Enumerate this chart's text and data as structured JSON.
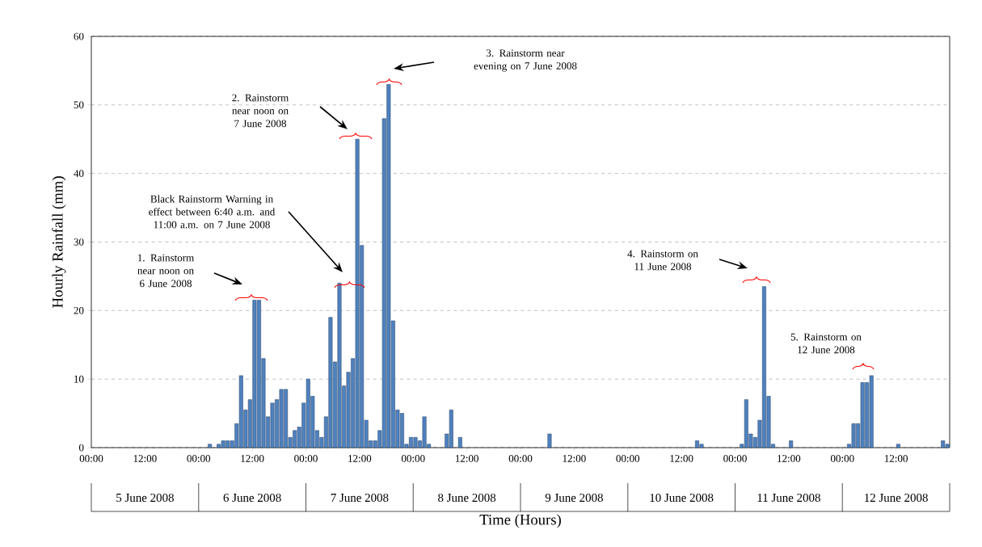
{
  "chart_data": {
    "type": "bar",
    "xlabel": "Time (Hours)",
    "ylabel": "Hourly Rainfall (mm)",
    "color": "#4f81bd",
    "grid": "y",
    "x": [
      "2008-06-06T02:00",
      "2008-06-06T04:00",
      "2008-06-06T05:00",
      "2008-06-06T06:00",
      "2008-06-06T07:00",
      "2008-06-06T08:00",
      "2008-06-06T09:00",
      "2008-06-06T10:00",
      "2008-06-06T11:00",
      "2008-06-06T12:00",
      "2008-06-06T13:00",
      "2008-06-06T14:00",
      "2008-06-06T15:00",
      "2008-06-06T16:00",
      "2008-06-06T17:00",
      "2008-06-06T18:00",
      "2008-06-06T19:00",
      "2008-06-06T20:00",
      "2008-06-06T21:00",
      "2008-06-06T22:00",
      "2008-06-06T23:00",
      "2008-06-07T00:00",
      "2008-06-07T01:00",
      "2008-06-07T02:00",
      "2008-06-07T03:00",
      "2008-06-07T04:00",
      "2008-06-07T05:00",
      "2008-06-07T06:00",
      "2008-06-07T07:00",
      "2008-06-07T08:00",
      "2008-06-07T09:00",
      "2008-06-07T10:00",
      "2008-06-07T11:00",
      "2008-06-07T12:00",
      "2008-06-07T13:00",
      "2008-06-07T14:00",
      "2008-06-07T15:00",
      "2008-06-07T16:00",
      "2008-06-07T17:00",
      "2008-06-07T18:00",
      "2008-06-07T19:00",
      "2008-06-07T20:00",
      "2008-06-07T21:00",
      "2008-06-07T22:00",
      "2008-06-07T23:00",
      "2008-06-08T00:00",
      "2008-06-08T01:00",
      "2008-06-08T02:00",
      "2008-06-08T03:00",
      "2008-06-08T07:00",
      "2008-06-08T08:00",
      "2008-06-08T10:00",
      "2008-06-09T06:00",
      "2008-06-10T15:00",
      "2008-06-10T16:00",
      "2008-06-11T01:00",
      "2008-06-11T02:00",
      "2008-06-11T03:00",
      "2008-06-11T04:00",
      "2008-06-11T05:00",
      "2008-06-11T06:00",
      "2008-06-11T07:00",
      "2008-06-11T08:00",
      "2008-06-11T12:00",
      "2008-06-12T01:00",
      "2008-06-12T02:00",
      "2008-06-12T03:00",
      "2008-06-12T04:00",
      "2008-06-12T05:00",
      "2008-06-12T06:00",
      "2008-06-12T12:00",
      "2008-06-12T22:00",
      "2008-06-12T23:00"
    ],
    "values": [
      0.5,
      0.5,
      1,
      1,
      1,
      3.5,
      10.5,
      5.5,
      7,
      21.5,
      21.5,
      13,
      4.5,
      6.5,
      7,
      8.5,
      8.5,
      1.5,
      2.5,
      3,
      6.5,
      10,
      7.5,
      2.5,
      1.5,
      4.5,
      19,
      12.5,
      24,
      9,
      11,
      13,
      45,
      29.5,
      4,
      1,
      1,
      2.5,
      48,
      53,
      18.5,
      5.5,
      5,
      0.5,
      1.5,
      1.5,
      1,
      4.5,
      0.5,
      2,
      5.5,
      1.5,
      2,
      1,
      0.5,
      0.5,
      7,
      2,
      1.5,
      4,
      23.5,
      7.5,
      0.5,
      1,
      0.5,
      3.5,
      3.5,
      9.5,
      9.5,
      10.5,
      0.5,
      1,
      0.5
    ],
    "xlim": [
      "2008-06-05T00:00",
      "2008-06-13T00:00"
    ],
    "ylim": [
      0,
      60
    ],
    "yticks": [
      0,
      10,
      20,
      30,
      40,
      50,
      60
    ],
    "xticks": [
      {
        "value": "2008-06-05T00:00",
        "label": "00:00"
      },
      {
        "value": "2008-06-05T12:00",
        "label": "12:00"
      },
      {
        "value": "2008-06-06T00:00",
        "label": "00:00"
      },
      {
        "value": "2008-06-06T12:00",
        "label": "12:00"
      },
      {
        "value": "2008-06-07T00:00",
        "label": "00:00"
      },
      {
        "value": "2008-06-07T12:00",
        "label": "12:00"
      },
      {
        "value": "2008-06-08T00:00",
        "label": "00:00"
      },
      {
        "value": "2008-06-08T12:00",
        "label": "12:00"
      },
      {
        "value": "2008-06-09T00:00",
        "label": "00:00"
      },
      {
        "value": "2008-06-09T12:00",
        "label": "12:00"
      },
      {
        "value": "2008-06-10T00:00",
        "label": "00:00"
      },
      {
        "value": "2008-06-10T12:00",
        "label": "12:00"
      },
      {
        "value": "2008-06-11T00:00",
        "label": "00:00"
      },
      {
        "value": "2008-06-11T12:00",
        "label": "12:00"
      },
      {
        "value": "2008-06-12T00:00",
        "label": "00:00"
      },
      {
        "value": "2008-06-12T12:00",
        "label": "12:00"
      }
    ],
    "annotations": [
      "1. Rainstorm near noon on 6 June 2008",
      "Black Rainstorm Warning in effect between 6:40 a.m. and 11:00 a.m. on 7 June 2008",
      "2. Rainstorm near noon on 7 June 2008",
      "3. Rainstorm near evening on 7 June 2008",
      "4. Rainstorm on 11 June 2008",
      "5. Rainstorm on 12 June 2008",
      "5 June 2008",
      "6 June 2008",
      "7 June 2008",
      "8 June 2008",
      "9 June 2008",
      "10 June 2008",
      "11 June 2008",
      "12 June 2008"
    ]
  }
}
